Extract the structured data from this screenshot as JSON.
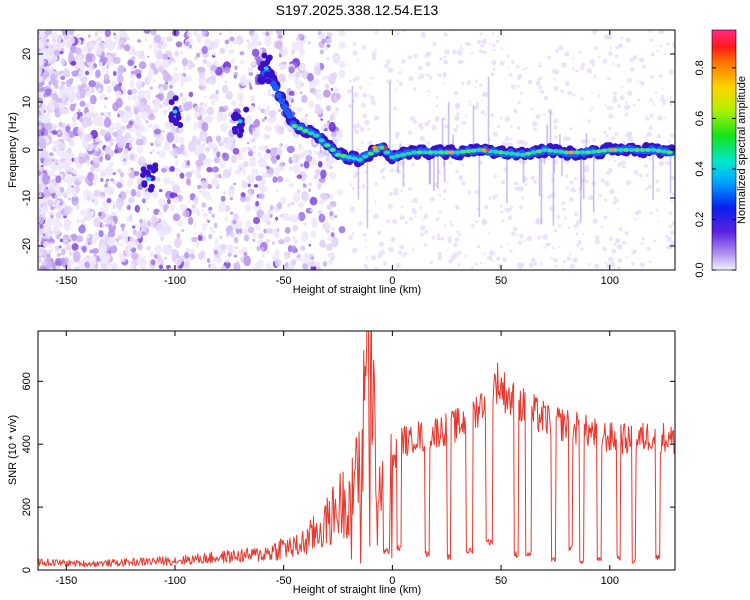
{
  "chart_data": [
    {
      "type": "heatmap",
      "title": "S197.2025.338.12.54.E13",
      "xlabel": "Height of straight line (km)",
      "ylabel": "Frequency (Hz)",
      "xlim": [
        -163,
        130
      ],
      "ylim": [
        -25,
        25
      ],
      "xticks": [
        -150,
        -100,
        -50,
        0,
        50,
        100
      ],
      "yticks": [
        -20,
        -10,
        0,
        10,
        20
      ],
      "colorbar": {
        "label": "Normalized spectral amplitude",
        "range": [
          0,
          0.95
        ],
        "ticks": [
          "0.0",
          "0.2",
          "0.4",
          "0.6",
          "0.8"
        ]
      },
      "ridge": [
        {
          "x": -160,
          "y": 12
        },
        {
          "x": -140,
          "y": 5
        },
        {
          "x": -125,
          "y": -3
        },
        {
          "x": -110,
          "y": -7
        },
        {
          "x": -100,
          "y": 8
        },
        {
          "x": -90,
          "y": 6
        },
        {
          "x": -75,
          "y": 10
        },
        {
          "x": -68,
          "y": 7
        },
        {
          "x": -58,
          "y": 17
        },
        {
          "x": -45,
          "y": 5
        },
        {
          "x": -35,
          "y": 3
        },
        {
          "x": -25,
          "y": -1
        },
        {
          "x": -15,
          "y": -2
        },
        {
          "x": -5,
          "y": 0.5
        },
        {
          "x": 0,
          "y": -1.5
        },
        {
          "x": 10,
          "y": -0.5
        },
        {
          "x": 20,
          "y": -0.5
        },
        {
          "x": 30,
          "y": -0.5
        },
        {
          "x": 40,
          "y": 0
        },
        {
          "x": 50,
          "y": -0.5
        },
        {
          "x": 60,
          "y": -1
        },
        {
          "x": 70,
          "y": 0
        },
        {
          "x": 80,
          "y": -0.5
        },
        {
          "x": 90,
          "y": -0.5
        },
        {
          "x": 100,
          "y": 0
        },
        {
          "x": 110,
          "y": 0
        },
        {
          "x": 120,
          "y": 0
        },
        {
          "x": 128,
          "y": -0.5
        }
      ]
    },
    {
      "type": "line",
      "xlabel": "Height of straight line (km)",
      "ylabel": "SNR (10 * v/v)",
      "xlim": [
        -163,
        130
      ],
      "ylim": [
        0,
        760
      ],
      "xticks": [
        -150,
        -100,
        -50,
        0,
        50,
        100
      ],
      "yticks": [
        0,
        200,
        400,
        600
      ],
      "color": "#e8382e",
      "series": [
        {
          "name": "SNR",
          "x": [
            -163,
            -150,
            -140,
            -130,
            -120,
            -110,
            -100,
            -90,
            -80,
            -70,
            -60,
            -55,
            -50,
            -45,
            -40,
            -35,
            -30,
            -25,
            -20,
            -18,
            -16,
            -14,
            -12,
            -10,
            -8,
            -6,
            -4,
            -2,
            0,
            2,
            5,
            8,
            10,
            15,
            20,
            25,
            30,
            35,
            40,
            45,
            48,
            50,
            55,
            60,
            65,
            70,
            75,
            80,
            85,
            90,
            95,
            100,
            105,
            110,
            115,
            120,
            125,
            130
          ],
          "y": [
            25,
            22,
            20,
            22,
            25,
            28,
            30,
            35,
            40,
            45,
            50,
            60,
            75,
            70,
            90,
            120,
            150,
            200,
            230,
            250,
            300,
            380,
            600,
            750,
            420,
            300,
            250,
            350,
            330,
            380,
            420,
            400,
            430,
            420,
            440,
            450,
            460,
            480,
            520,
            560,
            600,
            580,
            540,
            520,
            500,
            480,
            470,
            460,
            450,
            440,
            430,
            420,
            420,
            410,
            420,
            430,
            420,
            410
          ]
        }
      ],
      "dips": [
        {
          "x0": -4,
          "x1": -1,
          "y": 50
        },
        {
          "x0": 2,
          "x1": 4,
          "y": 60
        },
        {
          "x0": 15,
          "x1": 17,
          "y": 40
        },
        {
          "x0": 25,
          "x1": 27,
          "y": 30
        },
        {
          "x0": 34,
          "x1": 37,
          "y": 50
        },
        {
          "x0": 43,
          "x1": 46,
          "y": 80
        },
        {
          "x0": 56,
          "x1": 58,
          "y": 40
        },
        {
          "x0": 61,
          "x1": 64,
          "y": 40
        },
        {
          "x0": 73,
          "x1": 75,
          "y": 20
        },
        {
          "x0": 81,
          "x1": 83,
          "y": 60
        },
        {
          "x0": 86,
          "x1": 88,
          "y": 20
        },
        {
          "x0": 94,
          "x1": 96,
          "y": 20
        },
        {
          "x0": 103,
          "x1": 105,
          "y": 30
        },
        {
          "x0": 110,
          "x1": 112,
          "y": 20
        },
        {
          "x0": 121,
          "x1": 123,
          "y": 30
        }
      ]
    }
  ]
}
